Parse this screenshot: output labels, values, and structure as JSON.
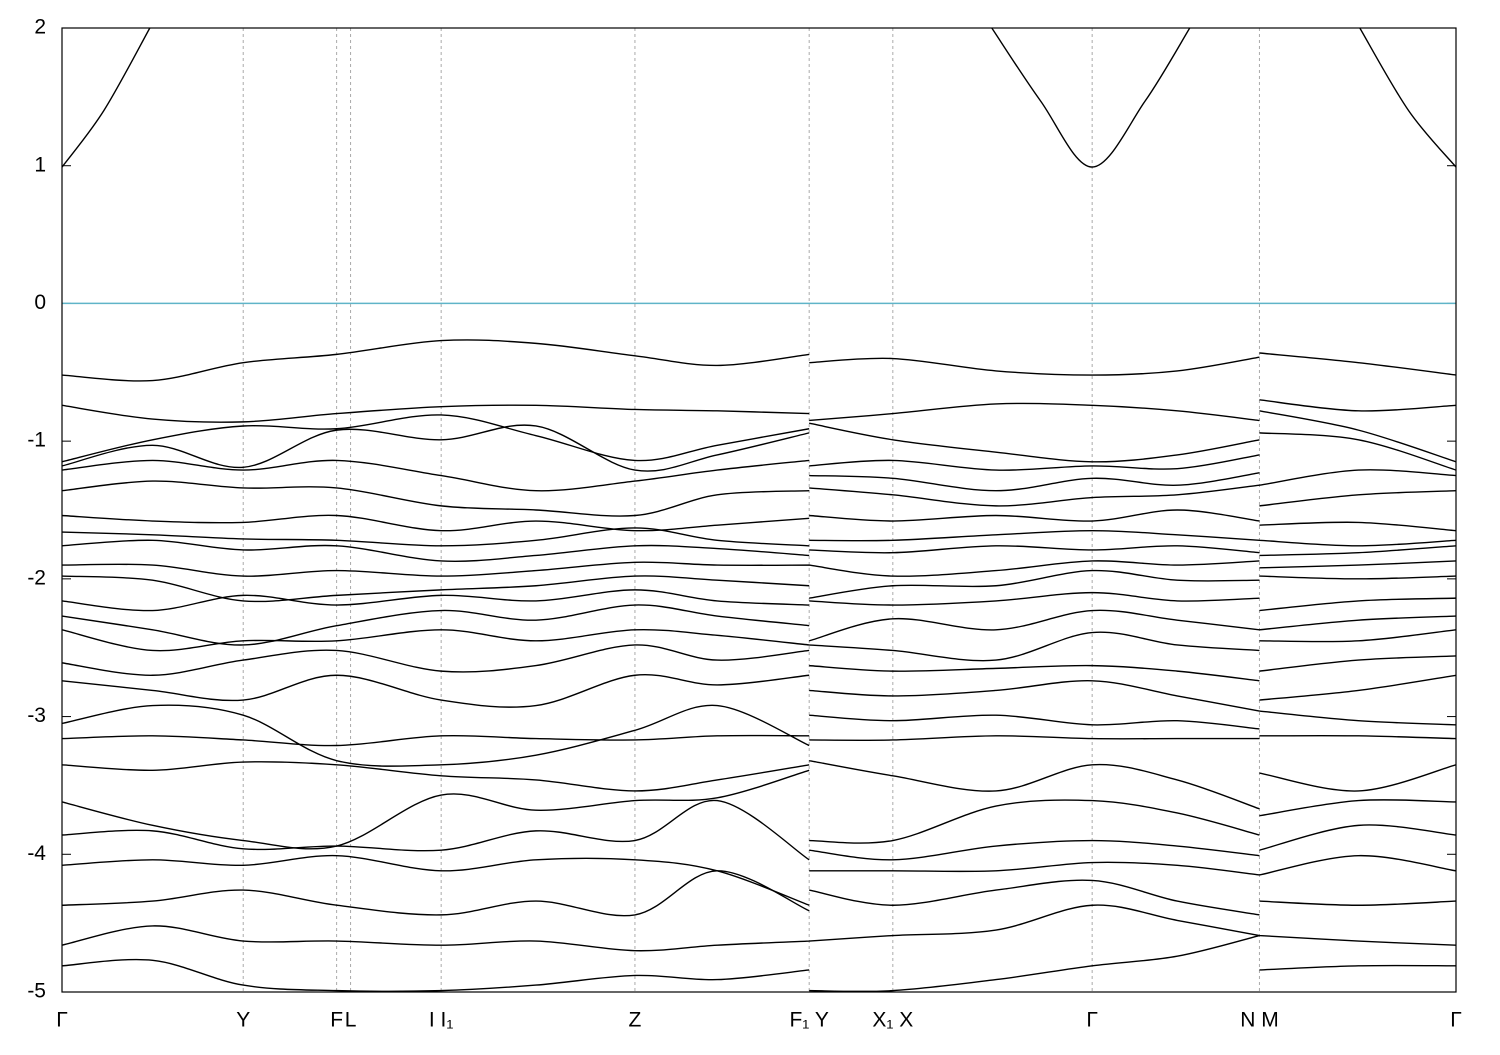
{
  "chart_data": {
    "type": "line",
    "color": "#000000",
    "reference_line": {
      "y": 0,
      "color": "#5fb4c8"
    },
    "xlim": [
      0,
      1
    ],
    "ylim": [
      -5,
      2
    ],
    "yticks": [
      2,
      1,
      0,
      -1,
      -2,
      -3,
      -4,
      -5
    ],
    "xticks": [
      {
        "value": 0,
        "label": "Γ"
      },
      {
        "value": 0.13,
        "label": "Y"
      },
      {
        "value": 0.197,
        "label": "F"
      },
      {
        "value": 0.207,
        "label": "L"
      },
      {
        "value": 0.272,
        "label": "I  I₁"
      },
      {
        "value": 0.411,
        "label": "Z"
      },
      {
        "value": 0.536,
        "label": "F₁ Y"
      },
      {
        "value": 0.596,
        "label": "X₁ X"
      },
      {
        "value": 0.739,
        "label": "Γ"
      },
      {
        "value": 0.859,
        "label": "N M"
      },
      {
        "value": 1,
        "label": "Γ"
      }
    ],
    "x": [
      0,
      0.065,
      0.13,
      0.197,
      0.272,
      0.34,
      0.411,
      0.47,
      0.536,
      0.536,
      0.536,
      0.596,
      0.67,
      0.739,
      0.8,
      0.859,
      0.859,
      0.859,
      0.93,
      1
    ],
    "series": [
      {
        "x": [
          0,
          0.03,
          0.063,
          0.063,
          0.667,
          0.702,
          0.739,
          0.777,
          0.809,
          0.809,
          0.931,
          0.966,
          1
        ],
        "values": [
          0.99,
          1.4,
          2.0,
          null,
          2.0,
          1.47,
          0.99,
          1.47,
          2.0,
          null,
          2.0,
          1.4,
          0.99
        ]
      },
      {
        "values": [
          -0.52,
          -0.56,
          -0.43,
          -0.37,
          -0.27,
          -0.29,
          -0.38,
          -0.45,
          -0.37,
          null,
          -0.43,
          -0.4,
          -0.49,
          -0.52,
          -0.49,
          -0.39,
          null,
          -0.36,
          -0.43,
          -0.52
        ]
      },
      {
        "values": [
          -0.74,
          -0.84,
          -0.86,
          -0.8,
          -0.75,
          -0.74,
          -0.77,
          -0.78,
          -0.8,
          null,
          -0.85,
          -0.8,
          -0.73,
          -0.74,
          -0.78,
          -0.85,
          null,
          -0.7,
          -0.78,
          -0.74
        ]
      },
      {
        "values": [
          -1.15,
          -0.99,
          -0.89,
          -0.91,
          -0.81,
          -0.96,
          -1.14,
          -1.03,
          -0.91,
          null,
          -0.87,
          -0.99,
          -1.08,
          -1.15,
          -1.1,
          -0.99,
          null,
          -0.78,
          -0.92,
          -1.15
        ]
      },
      {
        "values": [
          -1.18,
          -1.03,
          -1.19,
          -0.92,
          -0.99,
          -0.89,
          -1.21,
          -1.1,
          -0.94,
          null,
          -1.18,
          -1.14,
          -1.21,
          -1.18,
          -1.2,
          -1.1,
          null,
          -0.94,
          -0.99,
          -1.21
        ]
      },
      {
        "values": [
          -1.21,
          -1.14,
          -1.21,
          -1.14,
          -1.25,
          -1.36,
          -1.29,
          -1.21,
          -1.14,
          null,
          -1.25,
          -1.27,
          -1.36,
          -1.27,
          -1.32,
          -1.23,
          null,
          -1.32,
          -1.21,
          -1.25
        ]
      },
      {
        "values": [
          -1.36,
          -1.29,
          -1.34,
          -1.34,
          -1.47,
          -1.5,
          -1.54,
          -1.39,
          -1.36,
          null,
          -1.34,
          -1.39,
          -1.47,
          -1.41,
          -1.39,
          -1.32,
          null,
          -1.47,
          -1.39,
          -1.36
        ]
      },
      {
        "values": [
          -1.54,
          -1.58,
          -1.59,
          -1.54,
          -1.65,
          -1.58,
          -1.65,
          -1.61,
          -1.56,
          null,
          -1.54,
          -1.58,
          -1.54,
          -1.58,
          -1.5,
          -1.58,
          null,
          -1.61,
          -1.59,
          -1.65
        ]
      },
      {
        "values": [
          -1.66,
          -1.68,
          -1.71,
          -1.72,
          -1.76,
          -1.72,
          -1.63,
          -1.72,
          -1.76,
          null,
          -1.72,
          -1.72,
          -1.68,
          -1.65,
          -1.68,
          -1.72,
          null,
          -1.72,
          -1.76,
          -1.72
        ]
      },
      {
        "values": [
          -1.76,
          -1.72,
          -1.79,
          -1.76,
          -1.87,
          -1.83,
          -1.76,
          -1.78,
          -1.83,
          null,
          -1.79,
          -1.81,
          -1.76,
          -1.79,
          -1.76,
          -1.81,
          null,
          -1.83,
          -1.81,
          -1.76
        ]
      },
      {
        "values": [
          -1.9,
          -1.9,
          -1.98,
          -1.94,
          -1.98,
          -1.94,
          -1.88,
          -1.9,
          -1.9,
          null,
          -1.9,
          -1.98,
          -1.94,
          -1.87,
          -1.9,
          -1.87,
          null,
          -1.92,
          -1.9,
          -1.87
        ]
      },
      {
        "values": [
          -1.98,
          -2.01,
          -2.16,
          -2.12,
          -2.08,
          -2.05,
          -1.98,
          -2.01,
          -2.05,
          null,
          -2.14,
          -2.05,
          -2.05,
          -1.94,
          -2.01,
          -2.01,
          null,
          -1.98,
          -2.0,
          -1.98
        ]
      },
      {
        "values": [
          -2.16,
          -2.23,
          -2.12,
          -2.19,
          -2.12,
          -2.16,
          -2.08,
          -2.16,
          -2.19,
          null,
          -2.16,
          -2.19,
          -2.16,
          -2.1,
          -2.16,
          -2.14,
          null,
          -2.23,
          -2.16,
          -2.14
        ]
      },
      {
        "values": [
          -2.27,
          -2.37,
          -2.48,
          -2.34,
          -2.23,
          -2.3,
          -2.19,
          -2.27,
          -2.34,
          null,
          -2.45,
          -2.29,
          -2.37,
          -2.23,
          -2.3,
          -2.37,
          null,
          -2.37,
          -2.3,
          -2.27
        ]
      },
      {
        "values": [
          -2.37,
          -2.52,
          -2.45,
          -2.45,
          -2.37,
          -2.45,
          -2.37,
          -2.41,
          -2.48,
          null,
          -2.48,
          -2.52,
          -2.59,
          -2.39,
          -2.48,
          -2.52,
          null,
          -2.45,
          -2.45,
          -2.37
        ]
      },
      {
        "values": [
          -2.61,
          -2.7,
          -2.59,
          -2.52,
          -2.67,
          -2.63,
          -2.48,
          -2.59,
          -2.52,
          null,
          -2.63,
          -2.67,
          -2.65,
          -2.63,
          -2.67,
          -2.74,
          null,
          -2.67,
          -2.59,
          -2.56
        ]
      },
      {
        "values": [
          -2.74,
          -2.81,
          -2.88,
          -2.7,
          -2.88,
          -2.92,
          -2.7,
          -2.77,
          -2.7,
          null,
          -2.81,
          -2.85,
          -2.81,
          -2.74,
          -2.85,
          -2.96,
          null,
          -2.88,
          -2.81,
          -2.7
        ]
      },
      {
        "values": [
          -3.05,
          -2.92,
          -2.99,
          -3.32,
          -3.35,
          -3.28,
          -3.1,
          -2.92,
          -3.21,
          null,
          -2.99,
          -3.03,
          -2.99,
          -3.06,
          -3.03,
          -3.09,
          null,
          -2.96,
          -3.03,
          -3.06
        ]
      },
      {
        "values": [
          -3.16,
          -3.14,
          -3.17,
          -3.21,
          -3.14,
          -3.16,
          -3.17,
          -3.14,
          -3.14,
          null,
          -3.17,
          -3.17,
          -3.14,
          -3.16,
          -3.16,
          -3.16,
          null,
          -3.14,
          -3.14,
          -3.16
        ]
      },
      {
        "values": [
          -3.35,
          -3.39,
          -3.33,
          -3.35,
          -3.43,
          -3.46,
          -3.54,
          -3.46,
          -3.35,
          null,
          -3.32,
          -3.43,
          -3.54,
          -3.35,
          -3.46,
          -3.67,
          null,
          -3.41,
          -3.54,
          -3.35
        ]
      },
      {
        "values": [
          -3.62,
          -3.79,
          -3.9,
          -3.94,
          -3.57,
          -3.68,
          -3.61,
          -3.59,
          -3.39,
          null,
          -3.9,
          -3.9,
          -3.65,
          -3.61,
          -3.7,
          -3.86,
          null,
          -3.72,
          -3.61,
          -3.62
        ]
      },
      {
        "values": [
          -3.86,
          -3.83,
          -3.96,
          -3.94,
          -3.97,
          -3.83,
          -3.9,
          -3.61,
          -4.04,
          null,
          -3.97,
          -4.04,
          -3.94,
          -3.9,
          -3.94,
          -4.01,
          null,
          -3.97,
          -3.79,
          -3.86
        ]
      },
      {
        "values": [
          -4.08,
          -4.04,
          -4.08,
          -4.01,
          -4.12,
          -4.04,
          -4.04,
          -4.12,
          -4.37,
          null,
          -4.12,
          -4.12,
          -4.12,
          -4.06,
          -4.08,
          -4.15,
          null,
          -4.15,
          -4.01,
          -4.12
        ]
      },
      {
        "values": [
          -4.37,
          -4.34,
          -4.26,
          -4.37,
          -4.44,
          -4.34,
          -4.44,
          -4.12,
          -4.41,
          null,
          -4.26,
          -4.37,
          -4.26,
          -4.19,
          -4.34,
          -4.44,
          null,
          -4.34,
          -4.37,
          -4.34
        ]
      },
      {
        "values": [
          -4.66,
          -4.52,
          -4.63,
          -4.63,
          -4.66,
          -4.63,
          -4.7,
          -4.66,
          -4.63,
          null,
          -4.63,
          -4.59,
          -4.55,
          -4.37,
          -4.48,
          -4.59,
          null,
          -4.59,
          -4.63,
          -4.66
        ]
      },
      {
        "values": [
          -4.81,
          -4.77,
          -4.95,
          -4.99,
          -4.99,
          -4.95,
          -4.88,
          -4.91,
          -4.84,
          null,
          -4.99,
          -4.99,
          -4.91,
          -4.81,
          -4.74,
          -4.59,
          null,
          -4.84,
          -4.81,
          -4.81
        ]
      }
    ]
  }
}
